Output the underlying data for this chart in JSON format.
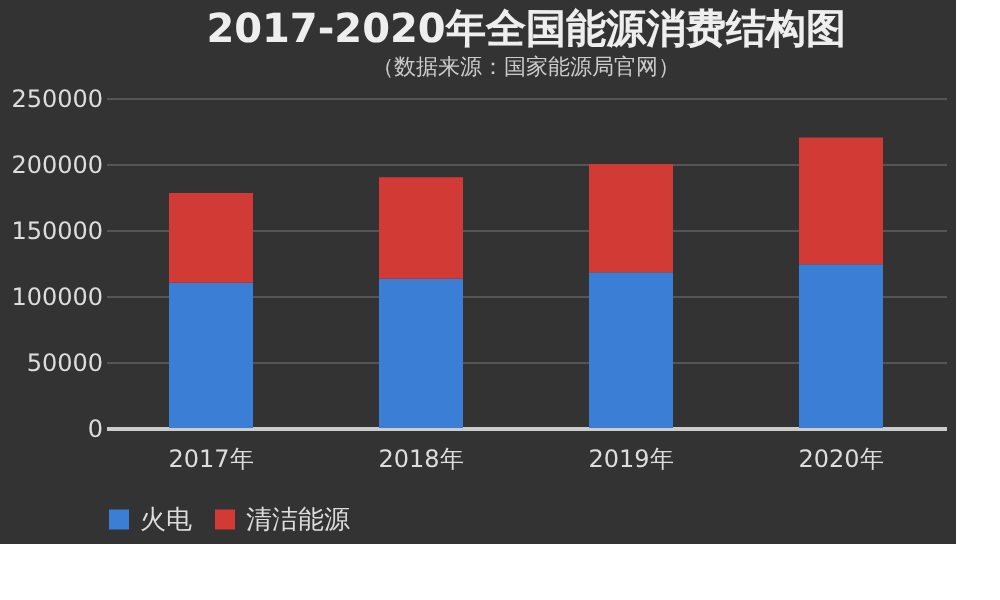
{
  "chart_data": {
    "type": "bar",
    "title": "2017-2020年全国能源消费结构图",
    "subtitle": "（数据来源：国家能源局官网）",
    "categories": [
      "2017年",
      "2018年",
      "2019年",
      "2020年"
    ],
    "stacked": true,
    "series": [
      {
        "name": "火电",
        "color": "#3a7fd5",
        "values": [
          110000,
          113000,
          118000,
          124000
        ]
      },
      {
        "name": "清洁能源",
        "color": "#d23a36",
        "values": [
          68000,
          77000,
          82000,
          96000
        ]
      }
    ],
    "ylim": [
      0,
      250000
    ],
    "yticks": [
      0,
      50000,
      100000,
      150000,
      200000,
      250000
    ],
    "grid": "y",
    "legend": "bottom"
  }
}
